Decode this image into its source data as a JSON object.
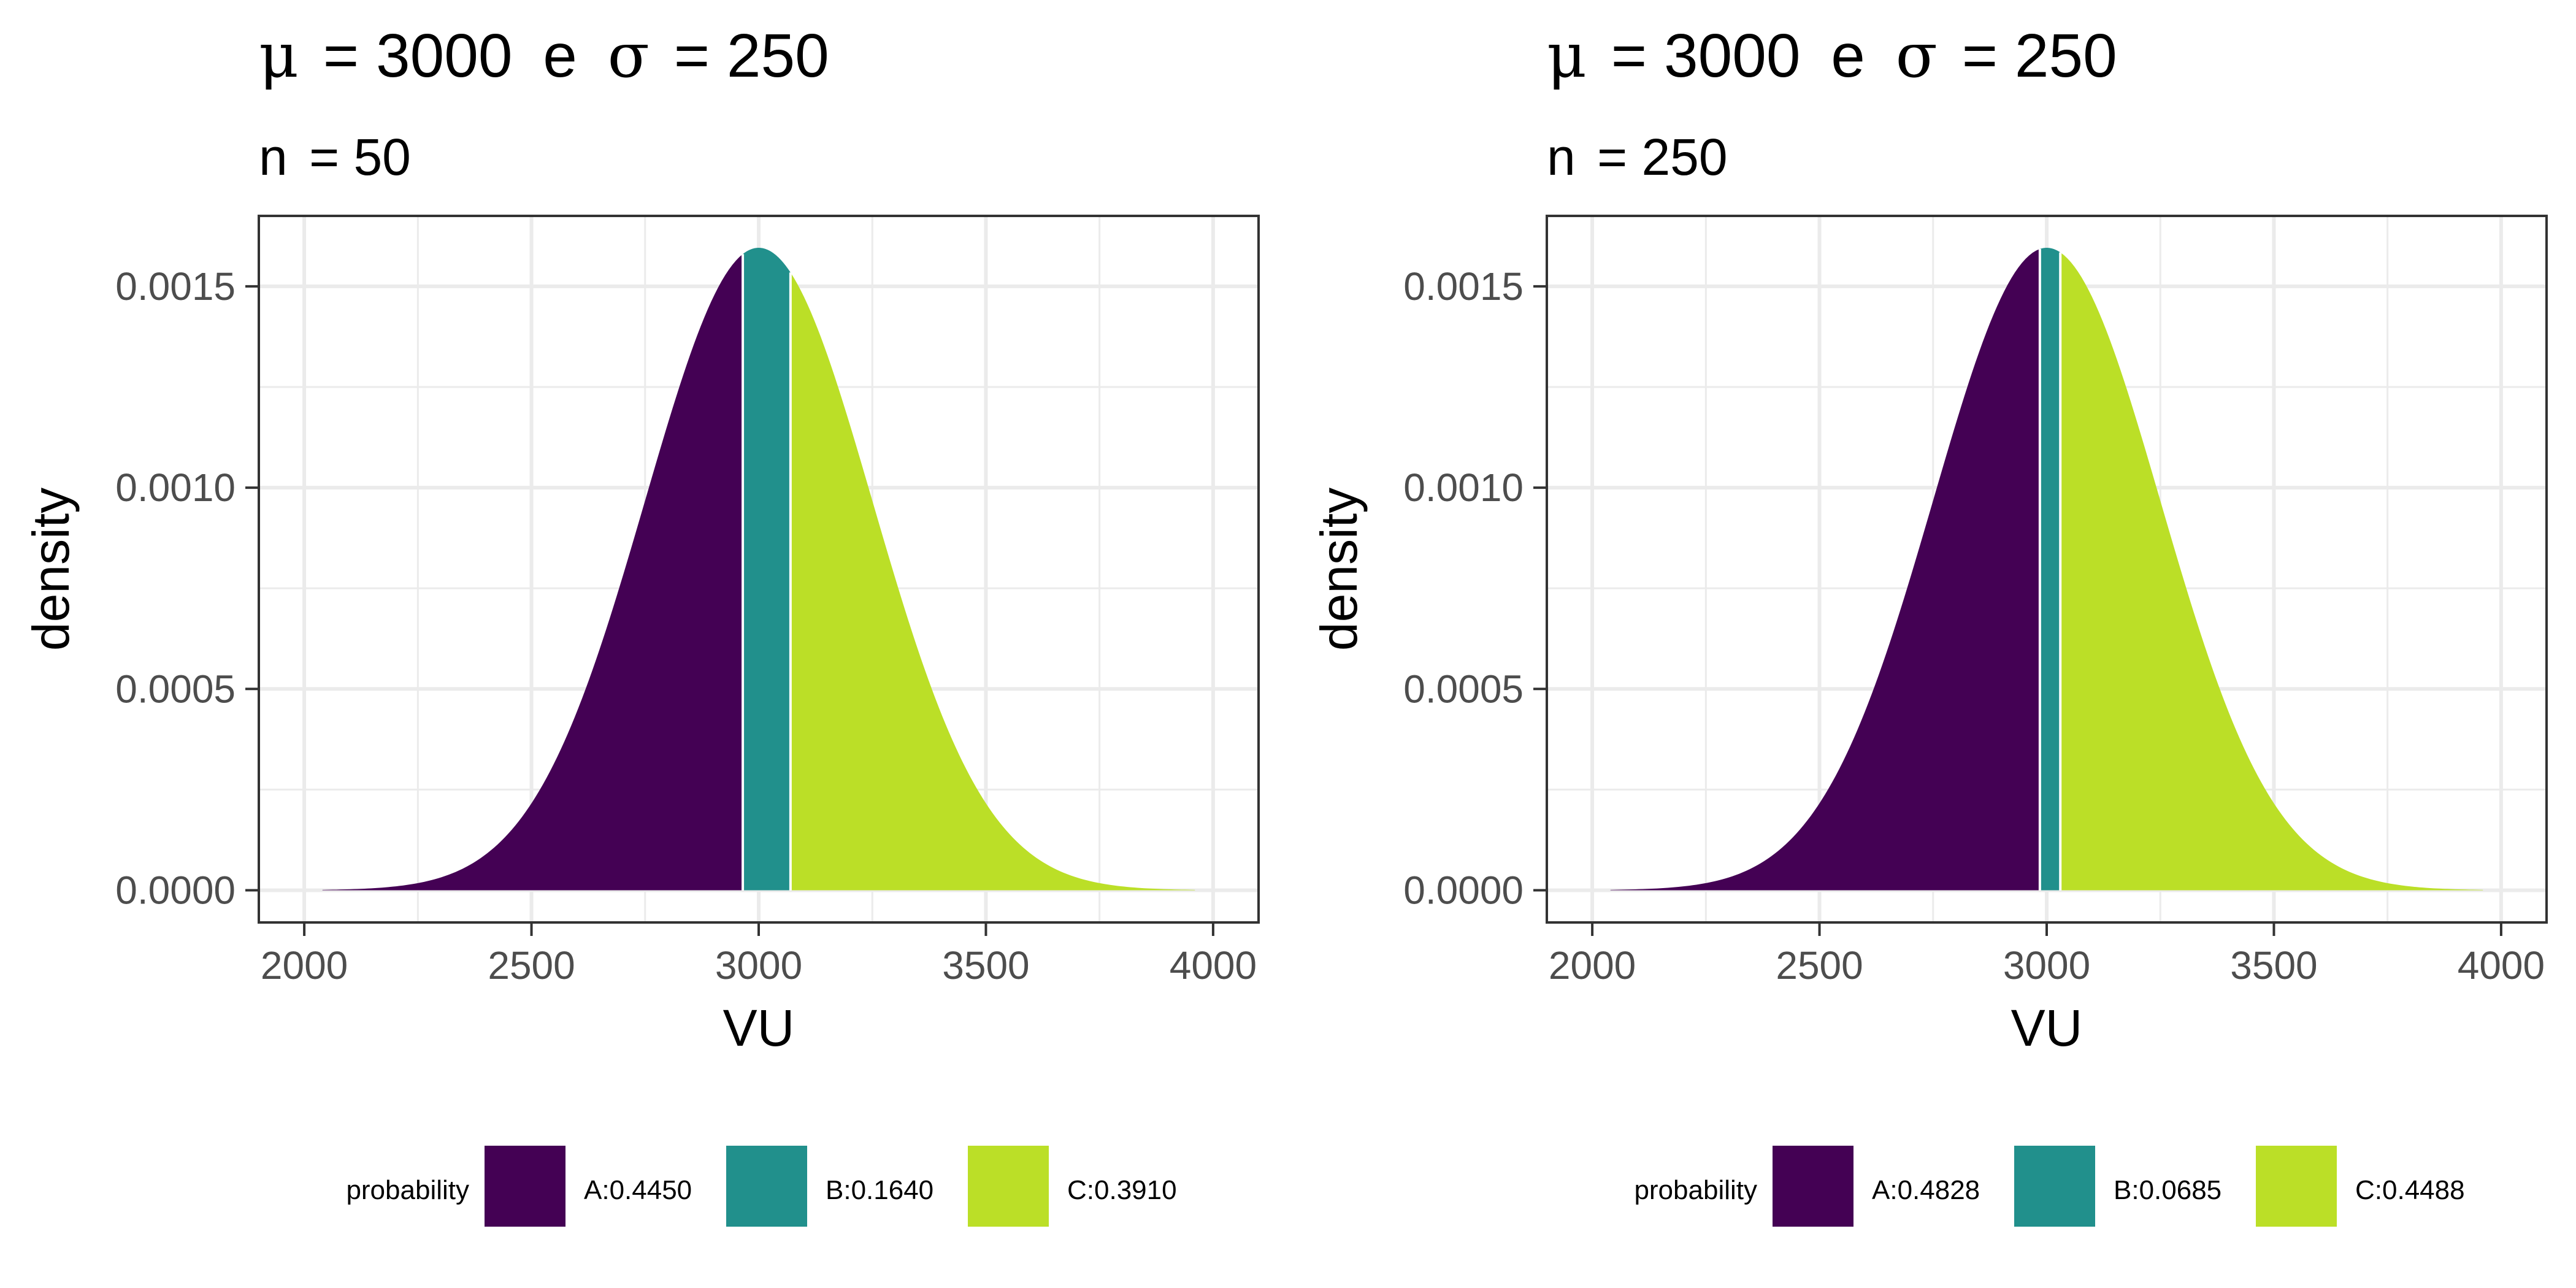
{
  "colors": {
    "A": "#440154",
    "B": "#21908C",
    "C": "#BBDF27"
  },
  "chart_data": [
    {
      "type": "area",
      "title": {
        "mu_symbol": "μ",
        "mu_value": "= 3000",
        "conj": "e",
        "sigma_symbol": "σ",
        "sigma_value": "= 250"
      },
      "subtitle": {
        "n_label": "n",
        "n_value": "= 50"
      },
      "xlabel": "VU",
      "ylabel": "density",
      "mean": 3000,
      "sd": 250,
      "xlim": [
        1900,
        4100
      ],
      "ylim": [
        -8e-05,
        0.001675
      ],
      "curve_range": [
        2040,
        3960
      ],
      "x_ticks": [
        2000,
        2500,
        3000,
        3500,
        4000
      ],
      "x_tick_labels": [
        "2000",
        "2500",
        "3000",
        "3500",
        "4000"
      ],
      "y_ticks": [
        0,
        0.0005,
        0.001,
        0.0015
      ],
      "y_tick_labels": [
        "0.0000",
        "0.0005",
        "0.0010",
        "0.0015"
      ],
      "grid": true,
      "legend_position": "bottom",
      "legend_title": "probability",
      "regions": [
        {
          "key": "A",
          "label": "A:0.4450",
          "from": 2040,
          "to": 2965
        },
        {
          "key": "B",
          "label": "B:0.1640",
          "from": 2965,
          "to": 3070
        },
        {
          "key": "C",
          "label": "C:0.3910",
          "from": 3070,
          "to": 3960
        }
      ]
    },
    {
      "type": "area",
      "title": {
        "mu_symbol": "μ",
        "mu_value": "= 3000",
        "conj": "e",
        "sigma_symbol": "σ",
        "sigma_value": "= 250"
      },
      "subtitle": {
        "n_label": "n",
        "n_value": "= 250"
      },
      "xlabel": "VU",
      "ylabel": "density",
      "mean": 3000,
      "sd": 250,
      "xlim": [
        1900,
        4100
      ],
      "ylim": [
        -8e-05,
        0.001675
      ],
      "curve_range": [
        2040,
        3960
      ],
      "x_ticks": [
        2000,
        2500,
        3000,
        3500,
        4000
      ],
      "x_tick_labels": [
        "2000",
        "2500",
        "3000",
        "3500",
        "4000"
      ],
      "y_ticks": [
        0,
        0.0005,
        0.001,
        0.0015
      ],
      "y_tick_labels": [
        "0.0000",
        "0.0005",
        "0.0010",
        "0.0015"
      ],
      "grid": true,
      "legend_position": "bottom",
      "legend_title": "probability",
      "regions": [
        {
          "key": "A",
          "label": "A:0.4828",
          "from": 2040,
          "to": 2985
        },
        {
          "key": "B",
          "label": "B:0.0685",
          "from": 2985,
          "to": 3030
        },
        {
          "key": "C",
          "label": "C:0.4488",
          "from": 3030,
          "to": 3960
        }
      ]
    }
  ]
}
